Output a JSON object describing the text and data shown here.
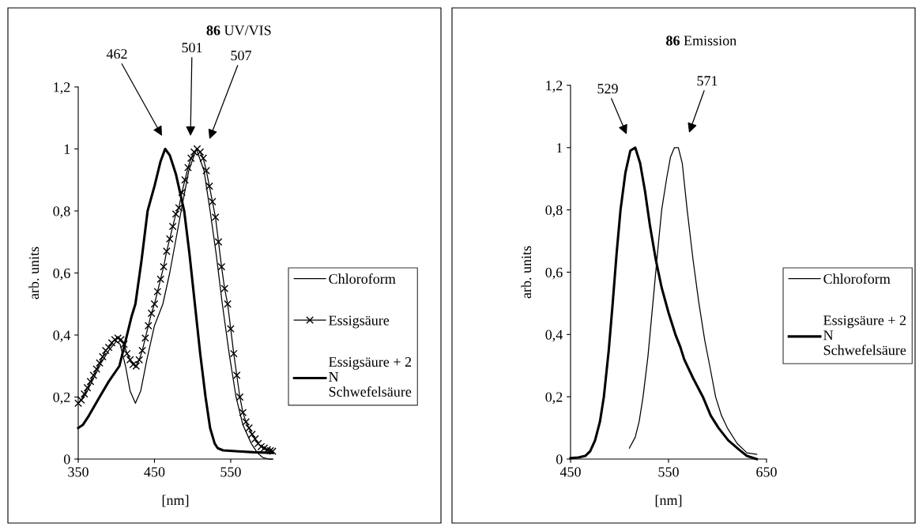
{
  "chart_data": [
    {
      "type": "line",
      "title": "86 UV/VIS",
      "xlabel": "[nm]",
      "ylabel": "arb. units",
      "xlim": [
        350,
        605
      ],
      "ylim": [
        0,
        1.2
      ],
      "xticks": [
        350,
        450,
        550
      ],
      "yticks": [
        0,
        {
          "value": 0.2,
          "label": "0,2"
        },
        {
          "value": 0.4,
          "label": "0,4"
        },
        {
          "value": 0.6,
          "label": "0,6"
        },
        {
          "value": 0.8,
          "label": "0,8"
        },
        {
          "value": 1,
          "label": "1"
        },
        {
          "value": 1.2,
          "label": "1,2"
        }
      ],
      "grid": false,
      "legend": "right",
      "series": [
        {
          "name": "Chloroform",
          "color": "#000000",
          "marker": "none",
          "x": [
            350,
            360,
            370,
            380,
            390,
            400,
            405,
            412,
            418,
            425,
            432,
            440,
            450,
            461,
            470,
            485,
            495,
            505,
            515,
            523,
            531,
            539,
            548,
            557,
            566,
            577,
            585,
            592,
            600,
            605
          ],
          "values": [
            0.18,
            0.21,
            0.26,
            0.31,
            0.35,
            0.38,
            0.37,
            0.3,
            0.22,
            0.18,
            0.22,
            0.32,
            0.43,
            0.5,
            0.6,
            0.8,
            0.93,
            1.0,
            0.93,
            0.8,
            0.66,
            0.5,
            0.34,
            0.2,
            0.11,
            0.05,
            0.02,
            0.005,
            0.0,
            0.0
          ]
        },
        {
          "name": "Essigsäure",
          "color": "#000000",
          "marker": "cross",
          "x": [
            350,
            354,
            358,
            362,
            366,
            370,
            374,
            378,
            382,
            386,
            390,
            394,
            398,
            402,
            406,
            410,
            414,
            418,
            422,
            426,
            430,
            434,
            438,
            442,
            446,
            450,
            454,
            458,
            462,
            466,
            470,
            474,
            478,
            482,
            486,
            490,
            494,
            498,
            502,
            506,
            510,
            514,
            518,
            522,
            526,
            530,
            534,
            538,
            542,
            546,
            550,
            554,
            558,
            562,
            566,
            570,
            574,
            578,
            582,
            586,
            590,
            594,
            598,
            602,
            605
          ],
          "values": [
            0.18,
            0.19,
            0.21,
            0.23,
            0.25,
            0.27,
            0.29,
            0.31,
            0.33,
            0.35,
            0.36,
            0.375,
            0.385,
            0.39,
            0.385,
            0.37,
            0.34,
            0.32,
            0.305,
            0.3,
            0.32,
            0.35,
            0.39,
            0.43,
            0.47,
            0.5,
            0.54,
            0.58,
            0.62,
            0.67,
            0.71,
            0.75,
            0.79,
            0.81,
            0.86,
            0.9,
            0.94,
            0.97,
            0.99,
            1.0,
            0.99,
            0.97,
            0.93,
            0.88,
            0.83,
            0.78,
            0.7,
            0.62,
            0.55,
            0.5,
            0.42,
            0.34,
            0.27,
            0.2,
            0.15,
            0.12,
            0.1,
            0.08,
            0.065,
            0.05,
            0.04,
            0.035,
            0.03,
            0.027,
            0.025
          ]
        },
        {
          "name": "Essigsäure + 2\nN\nSchwefelsäure",
          "color": "#000000",
          "marker": "none",
          "x": [
            350,
            356,
            364,
            378,
            390,
            404,
            412,
            420,
            425,
            433,
            441,
            450,
            458,
            464,
            470,
            478,
            489,
            496,
            503,
            510,
            517,
            523,
            529,
            533,
            540,
            560,
            580,
            605
          ],
          "values": [
            0.1,
            0.11,
            0.14,
            0.2,
            0.25,
            0.3,
            0.38,
            0.46,
            0.5,
            0.64,
            0.8,
            0.88,
            0.96,
            1.0,
            0.98,
            0.92,
            0.8,
            0.66,
            0.5,
            0.34,
            0.2,
            0.1,
            0.05,
            0.035,
            0.028,
            0.025,
            0.022,
            0.02
          ]
        }
      ],
      "annotations": [
        "462",
        "501",
        "507"
      ]
    },
    {
      "type": "line",
      "title": "86 Emission",
      "xlabel": "[nm]",
      "ylabel": "arb. units",
      "xlim": [
        450,
        650
      ],
      "ylim": [
        0,
        1.2
      ],
      "xticks": [
        450,
        550,
        650
      ],
      "yticks": [
        0,
        {
          "value": 0.2,
          "label": "0,2"
        },
        {
          "value": 0.4,
          "label": "0,4"
        },
        {
          "value": 0.6,
          "label": "0,6"
        },
        {
          "value": 0.8,
          "label": "0,8"
        },
        {
          "value": 1,
          "label": "1"
        },
        {
          "value": 1.2,
          "label": "1,2"
        }
      ],
      "grid": false,
      "legend": "right",
      "series": [
        {
          "name": "Chloroform",
          "color": "#000000",
          "marker": "none",
          "x": [
            510,
            516,
            520,
            524,
            529,
            534,
            539,
            543,
            548,
            552,
            556,
            560,
            564,
            569,
            575,
            581,
            587,
            592,
            598,
            604,
            610,
            620,
            630,
            640
          ],
          "values": [
            0.035,
            0.07,
            0.12,
            0.2,
            0.33,
            0.5,
            0.67,
            0.8,
            0.9,
            0.97,
            1.0,
            1.0,
            0.95,
            0.8,
            0.64,
            0.5,
            0.38,
            0.3,
            0.2,
            0.14,
            0.1,
            0.05,
            0.02,
            0.015
          ]
        },
        {
          "name": "Essigsäure + 2\nN\nSchwefelsäure",
          "color": "#000000",
          "marker": "none",
          "x": [
            450,
            458,
            465,
            470,
            475,
            480,
            484,
            489,
            493,
            497,
            501,
            506,
            511,
            516,
            521,
            526,
            531,
            537,
            543,
            550,
            557,
            562,
            566,
            575,
            585,
            593,
            601,
            611,
            622,
            630,
            640
          ],
          "values": [
            0.003,
            0.005,
            0.01,
            0.025,
            0.06,
            0.12,
            0.2,
            0.35,
            0.5,
            0.66,
            0.8,
            0.92,
            0.99,
            1.0,
            0.95,
            0.86,
            0.75,
            0.64,
            0.55,
            0.47,
            0.4,
            0.36,
            0.32,
            0.26,
            0.2,
            0.14,
            0.1,
            0.06,
            0.03,
            0.01,
            0.0
          ]
        }
      ],
      "annotations": [
        "529",
        "571"
      ]
    }
  ]
}
